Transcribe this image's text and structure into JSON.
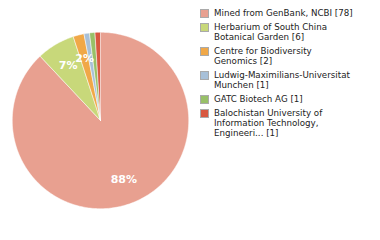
{
  "chart_data": {
    "type": "pie",
    "categories": [
      "Mined from GenBank, NCBI [78]",
      "Herbarium of South China\nBotanical Garden [6]",
      "Centre for Biodiversity\nGenomics [2]",
      "Ludwig-Maximilians-Universitat\nMunchen [1]",
      "GATC Biotech AG [1]",
      "Balochistan University of\nInformation Technology,\nEngineeri... [1]"
    ],
    "values": [
      88,
      7,
      2,
      1,
      1,
      1
    ],
    "value_labels": [
      "88%",
      "7%",
      "2%",
      null,
      null,
      null
    ],
    "colors": [
      "#e8a090",
      "#c8d87a",
      "#f0a848",
      "#a8c0d8",
      "#98c068",
      "#d85840"
    ],
    "data_labels": true,
    "legend": "right"
  }
}
